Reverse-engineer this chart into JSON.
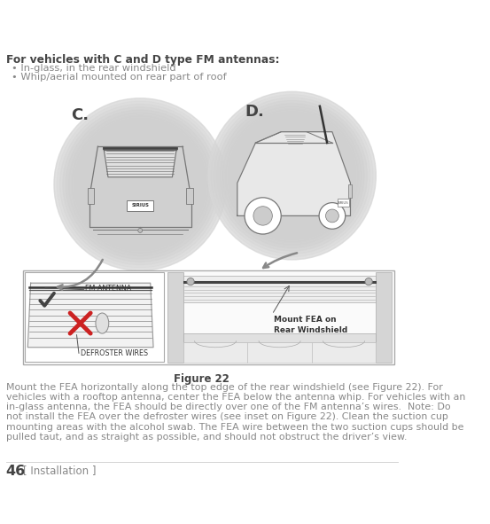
{
  "bg_color": "#ffffff",
  "title_bold": "For vehicles with C and D type FM antennas:",
  "bullet1": "• In-glass, in the rear windshield",
  "bullet2": "• Whip/aerial mounted on rear part of roof",
  "label_c": "C.",
  "label_d": "D.",
  "figure_caption": "Figure 22",
  "fm_antenna_label": "FM ANTENNA",
  "defroster_label": "DEFROSTER WIRES",
  "mount_label": "Mount FEA on\nRear Windshield",
  "page_number": "46",
  "page_label": "[ Installation ]",
  "text_color": "#888888",
  "dark_text_color": "#444444",
  "circle_color": "#d8d8d8",
  "arrow_color": "#888888",
  "line_color": "#888888",
  "box_edge_color": "#aaaaaa"
}
